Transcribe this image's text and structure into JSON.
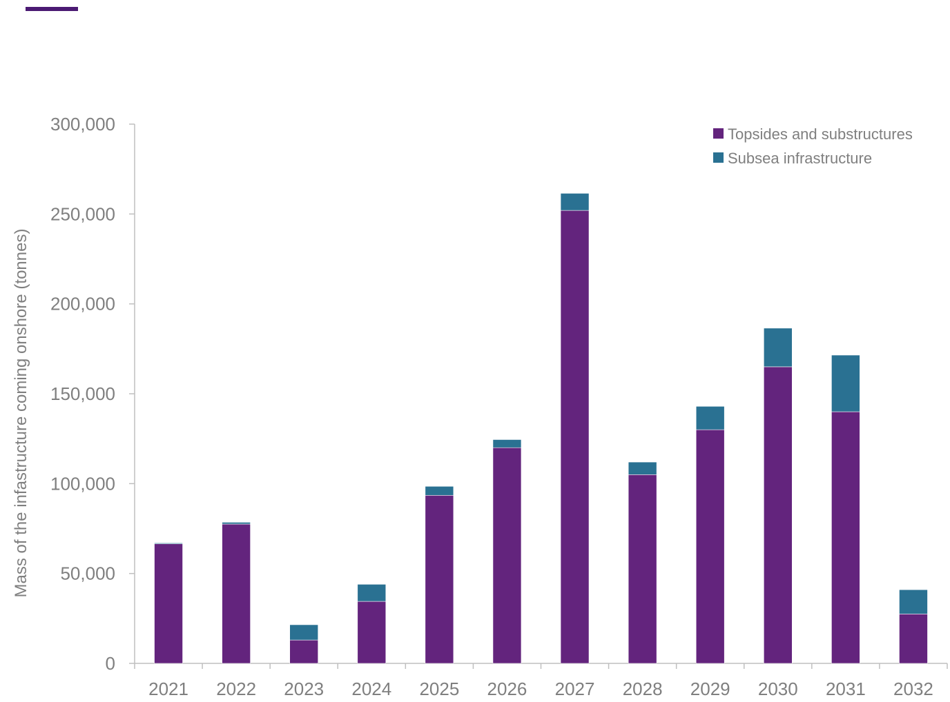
{
  "colors": {
    "accent": "#4b1a73",
    "topsides": "#63247d",
    "subsea": "#2a7192",
    "axis": "#bfbfbf",
    "text": "#7f7f7f"
  },
  "chart_data": {
    "type": "bar",
    "stacked": true,
    "categories": [
      "2021",
      "2022",
      "2023",
      "2024",
      "2025",
      "2026",
      "2027",
      "2028",
      "2029",
      "2030",
      "2031",
      "2032"
    ],
    "series": [
      {
        "name": "Topsides and substructures",
        "values": [
          66500,
          77500,
          13000,
          34500,
          93500,
          120000,
          252000,
          105000,
          130000,
          165000,
          140000,
          27500
        ]
      },
      {
        "name": "Subsea infrastructure",
        "values": [
          500,
          1000,
          8500,
          9500,
          5000,
          4500,
          9500,
          7000,
          13000,
          21500,
          31500,
          13500
        ]
      }
    ],
    "title": "",
    "xlabel": "",
    "ylabel": "Mass of the infastructure coming onshore (tonnes)",
    "ylim": [
      0,
      300000
    ],
    "yticks": [
      0,
      50000,
      100000,
      150000,
      200000,
      250000,
      300000
    ],
    "ytick_labels": [
      "0",
      "50,000",
      "100,000",
      "150,000",
      "200,000",
      "250,000",
      "300,000"
    ],
    "grid": false,
    "legend_position": "top-right"
  }
}
